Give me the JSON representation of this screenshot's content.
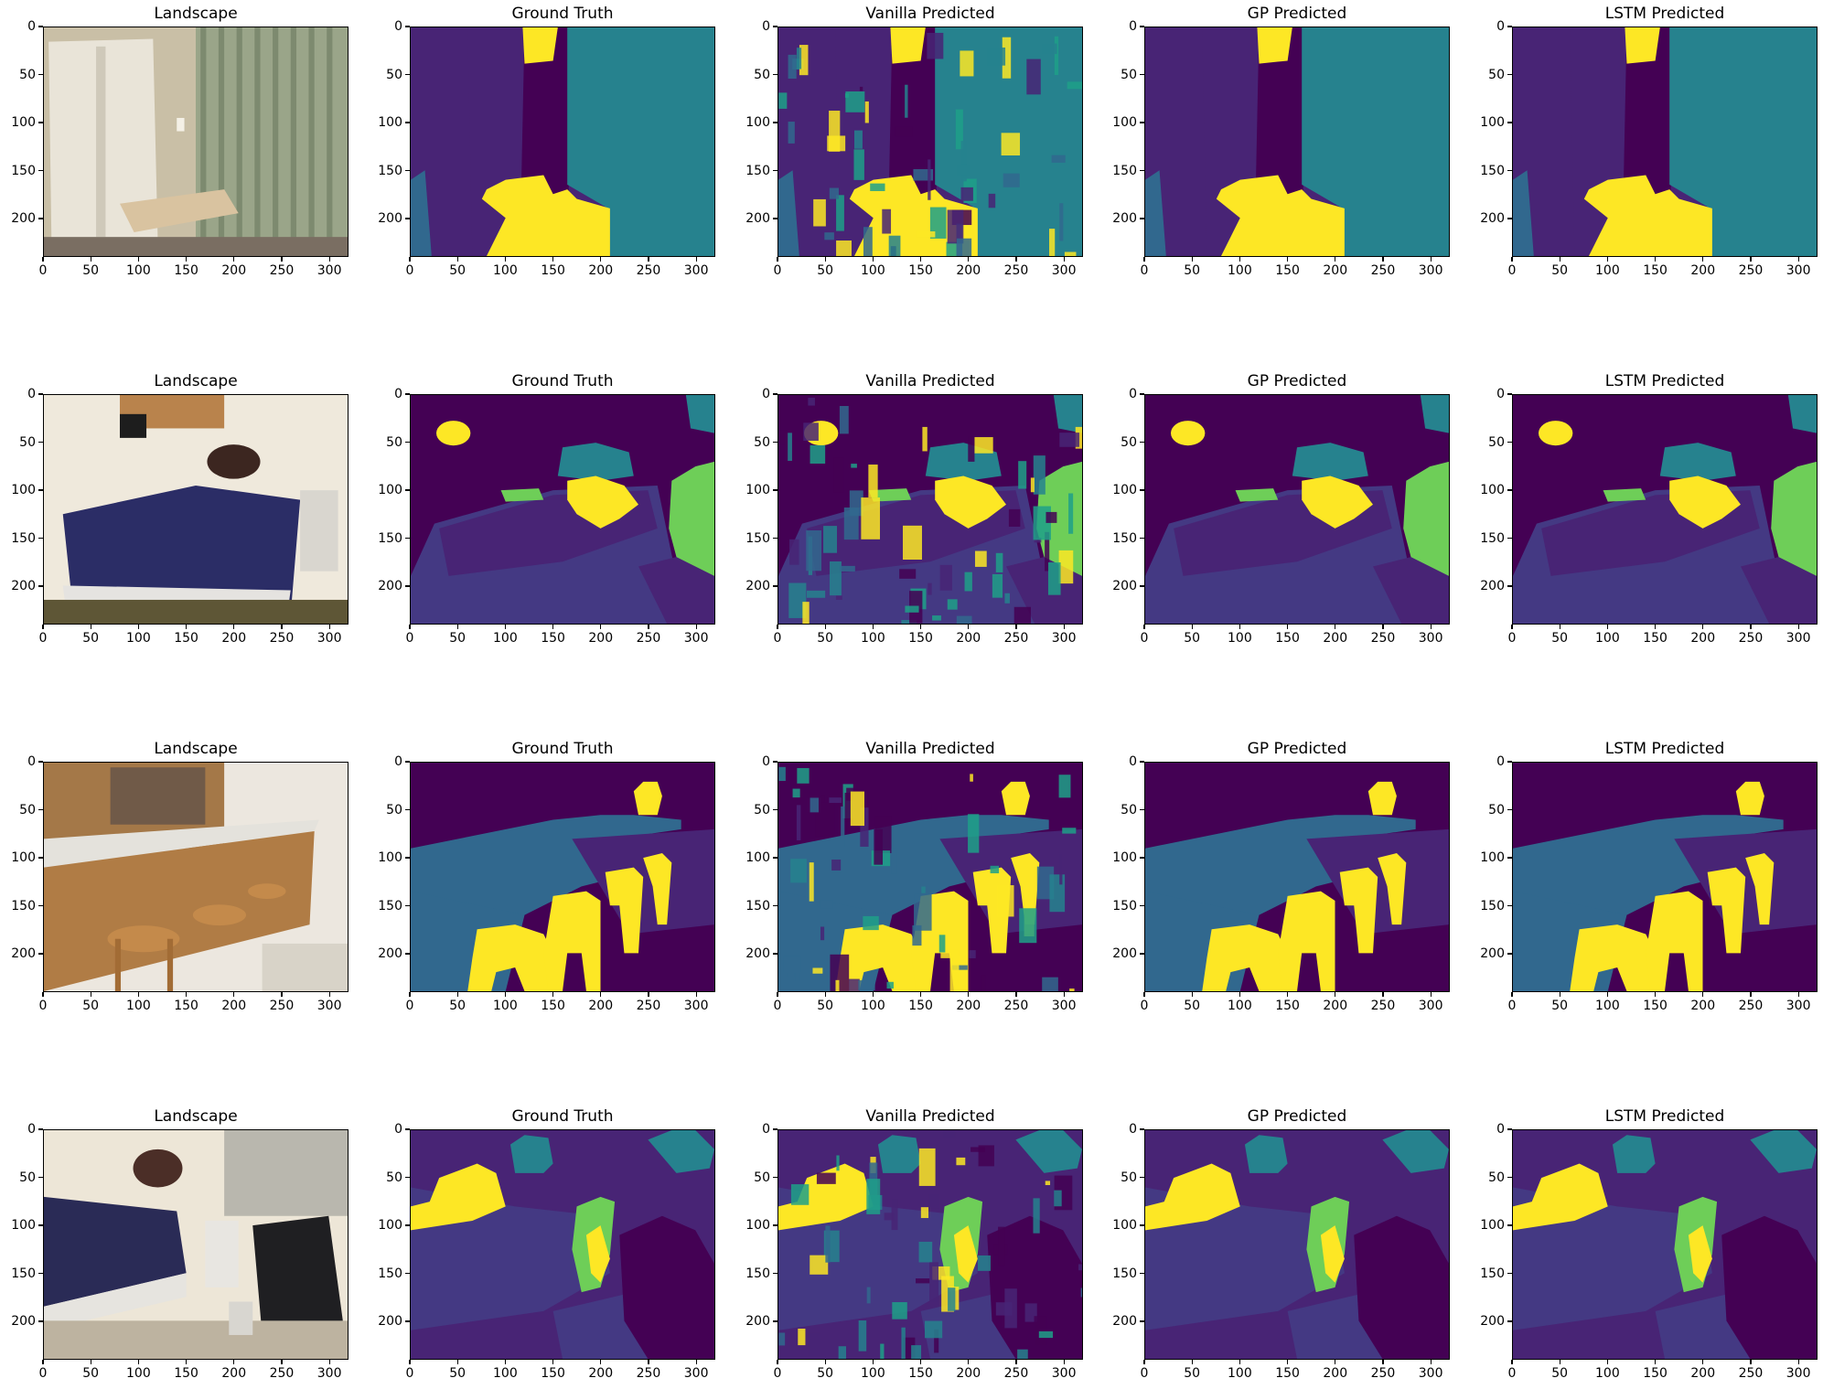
{
  "figure": {
    "rows": [
      {
        "panels": [
          {
            "id": "r1-landscape",
            "title": "Landscape",
            "kind": "photo",
            "scene": "room-closet-desk"
          },
          {
            "id": "r1-ground-truth",
            "title": "Ground Truth",
            "kind": "seg",
            "scene": "s1",
            "variant": "clean"
          },
          {
            "id": "r1-vanilla",
            "title": "Vanilla Predicted",
            "kind": "seg",
            "scene": "s1",
            "variant": "noisy"
          },
          {
            "id": "r1-gp",
            "title": "GP Predicted",
            "kind": "seg",
            "scene": "s1",
            "variant": "smooth"
          },
          {
            "id": "r1-lstm",
            "title": "LSTM Predicted",
            "kind": "seg",
            "scene": "s1",
            "variant": "smooth"
          }
        ]
      },
      {
        "panels": [
          {
            "id": "r2-landscape",
            "title": "Landscape",
            "kind": "photo",
            "scene": "bedroom-bed"
          },
          {
            "id": "r2-ground-truth",
            "title": "Ground Truth",
            "kind": "seg",
            "scene": "s2",
            "variant": "clean"
          },
          {
            "id": "r2-vanilla",
            "title": "Vanilla Predicted",
            "kind": "seg",
            "scene": "s2",
            "variant": "noisy"
          },
          {
            "id": "r2-gp",
            "title": "GP Predicted",
            "kind": "seg",
            "scene": "s2",
            "variant": "smooth"
          },
          {
            "id": "r2-lstm",
            "title": "LSTM Predicted",
            "kind": "seg",
            "scene": "s2",
            "variant": "smooth"
          }
        ]
      },
      {
        "panels": [
          {
            "id": "r3-landscape",
            "title": "Landscape",
            "kind": "photo",
            "scene": "kitchen-counter-stools"
          },
          {
            "id": "r3-ground-truth",
            "title": "Ground Truth",
            "kind": "seg",
            "scene": "s3",
            "variant": "clean"
          },
          {
            "id": "r3-vanilla",
            "title": "Vanilla Predicted",
            "kind": "seg",
            "scene": "s3",
            "variant": "noisy"
          },
          {
            "id": "r3-gp",
            "title": "GP Predicted",
            "kind": "seg",
            "scene": "s3",
            "variant": "smooth"
          },
          {
            "id": "r3-lstm",
            "title": "LSTM Predicted",
            "kind": "seg",
            "scene": "s3",
            "variant": "smooth"
          }
        ]
      },
      {
        "panels": [
          {
            "id": "r4-landscape",
            "title": "Landscape",
            "kind": "photo",
            "scene": "bedroom-chair"
          },
          {
            "id": "r4-ground-truth",
            "title": "Ground Truth",
            "kind": "seg",
            "scene": "s4",
            "variant": "clean"
          },
          {
            "id": "r4-vanilla",
            "title": "Vanilla Predicted",
            "kind": "seg",
            "scene": "s4",
            "variant": "noisy"
          },
          {
            "id": "r4-gp",
            "title": "GP Predicted",
            "kind": "seg",
            "scene": "s4",
            "variant": "smooth"
          },
          {
            "id": "r4-lstm",
            "title": "LSTM Predicted",
            "kind": "seg",
            "scene": "s4",
            "variant": "smooth"
          }
        ]
      }
    ],
    "x_ticks": [
      0,
      50,
      100,
      150,
      200,
      250,
      300
    ],
    "y_ticks": [
      0,
      50,
      100,
      150,
      200
    ],
    "image_width": 320,
    "image_height": 240,
    "colormap": {
      "purple_dark": "#440154",
      "purple": "#482475",
      "indigo": "#443983",
      "blue": "#31688e",
      "teal": "#26828e",
      "green_teal": "#1fa088",
      "green": "#6ece58",
      "yellow": "#fde725"
    }
  }
}
